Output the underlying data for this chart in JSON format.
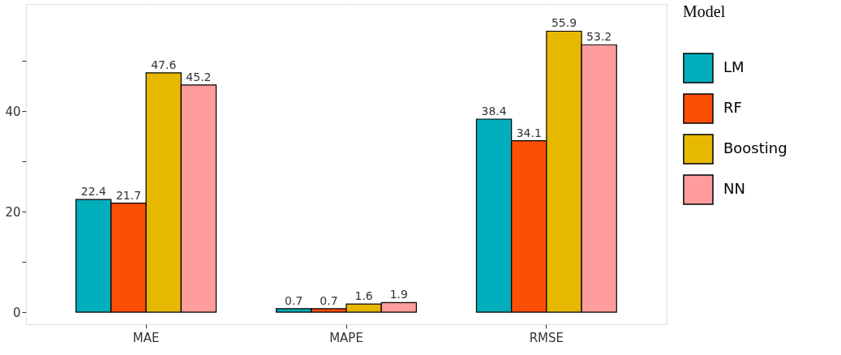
{
  "chart_data": {
    "type": "bar",
    "categories": [
      "MAE",
      "MAPE",
      "RMSE"
    ],
    "series": [
      {
        "name": "LM",
        "color": "#00afbb",
        "values": [
          22.4,
          0.7,
          38.4
        ]
      },
      {
        "name": "RF",
        "color": "#fc4e07",
        "values": [
          21.7,
          0.7,
          34.1
        ]
      },
      {
        "name": "Boosting",
        "color": "#e7b800",
        "values": [
          47.6,
          1.6,
          55.9
        ]
      },
      {
        "name": "NN",
        "color": "#ff9c9c",
        "values": [
          45.2,
          1.9,
          53.2
        ]
      }
    ],
    "legend_title": "Model",
    "ylim": [
      -2.4,
      61.3
    ],
    "yticks": [
      0,
      {
        "value": 10,
        "label": null
      },
      20,
      {
        "value": 30,
        "label": null
      },
      40,
      {
        "value": 50,
        "label": null
      }
    ],
    "grid": true,
    "legend": "right",
    "data_labels": true
  }
}
